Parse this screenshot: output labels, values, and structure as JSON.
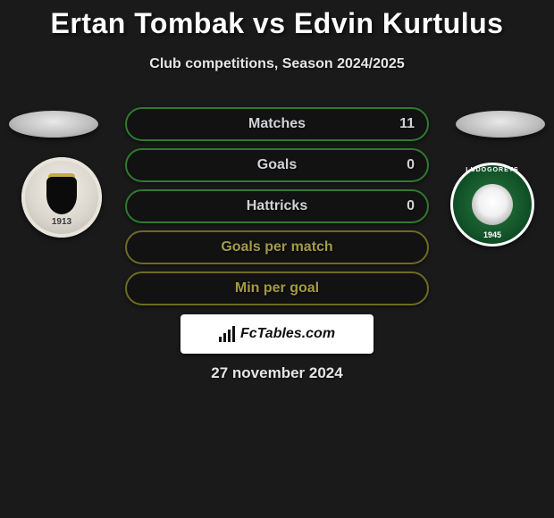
{
  "title": "Ertan Tombak vs Edvin Kurtulus",
  "subtitle": "Club competitions, Season 2024/2025",
  "date": "27 november 2024",
  "brand_text": "FcTables.com",
  "colors": {
    "background": "#1a1a1a",
    "border_green": "#2f7a2f",
    "border_olive": "#6e6a24",
    "text_green": "#3fa33f",
    "text_olive": "#a29b46"
  },
  "left_badge": {
    "year": "1913"
  },
  "right_badge": {
    "arc": "LUDOGORETS",
    "year": "1945"
  },
  "stats": [
    {
      "label": "Matches",
      "value": "11",
      "border": "#2f7a2f",
      "text_color": "#cfd3d6"
    },
    {
      "label": "Goals",
      "value": "0",
      "border": "#2f7a2f",
      "text_color": "#cfd3d6"
    },
    {
      "label": "Hattricks",
      "value": "0",
      "border": "#2f7a2f",
      "text_color": "#cfd3d6"
    },
    {
      "label": "Goals per match",
      "value": "",
      "border": "#6e6a24",
      "text_color": "#a29b46"
    },
    {
      "label": "Min per goal",
      "value": "",
      "border": "#6e6a24",
      "text_color": "#a29b46"
    }
  ]
}
